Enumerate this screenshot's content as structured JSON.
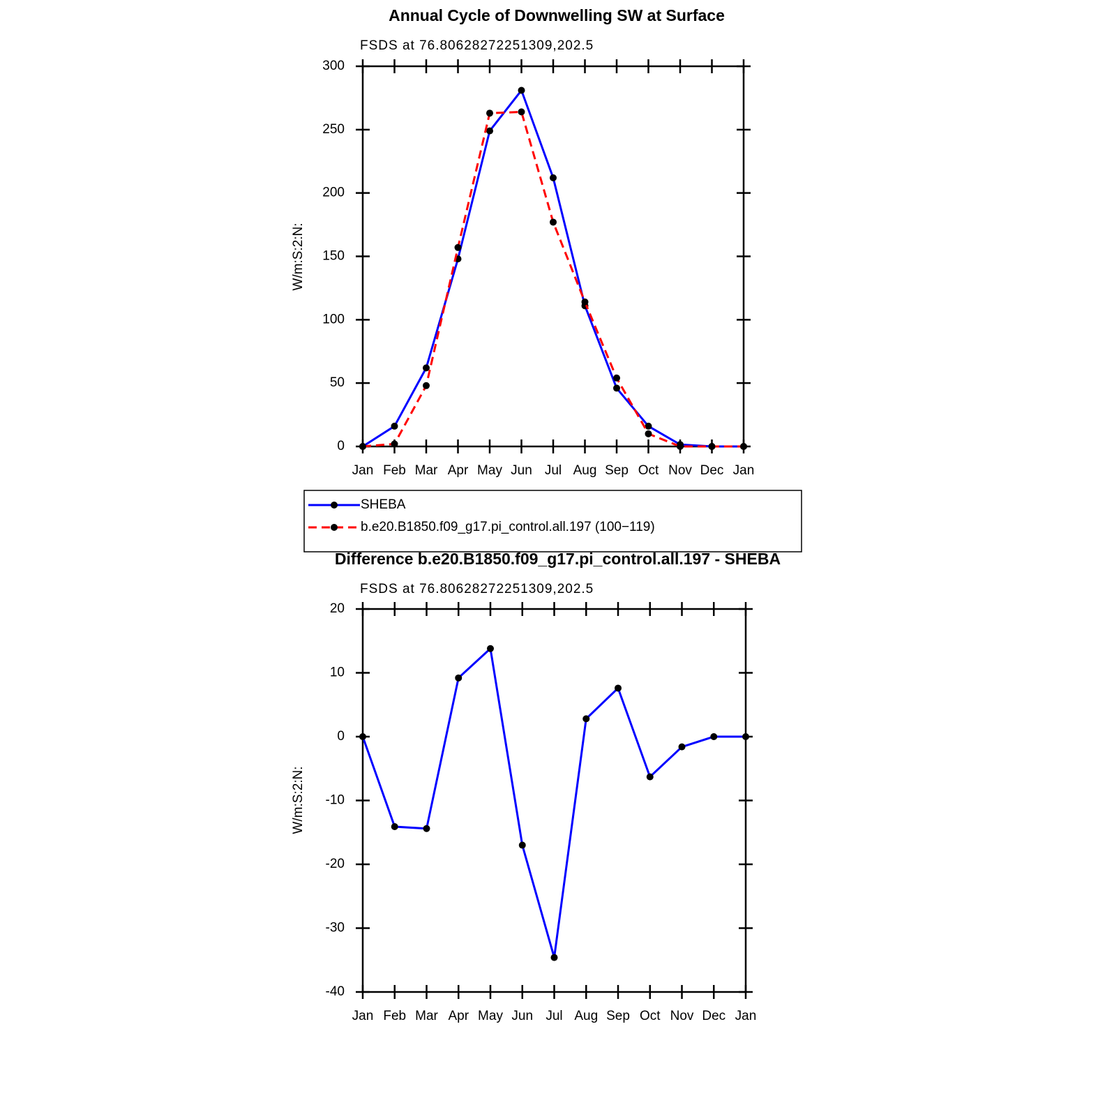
{
  "chart_data": [
    {
      "type": "line",
      "title": "Annual Cycle of Downwelling SW at Surface",
      "subtitle": "FSDS at 76.80628272251309,202.5",
      "ylabel": "W/m:S:2:N:",
      "categories": [
        "Jan",
        "Feb",
        "Mar",
        "Apr",
        "May",
        "Jun",
        "Jul",
        "Aug",
        "Sep",
        "Oct",
        "Nov",
        "Dec",
        "Jan"
      ],
      "series": [
        {
          "name": "SHEBA",
          "color": "#0000ff",
          "dash": false,
          "values": [
            0,
            16,
            62,
            148,
            249,
            281,
            212,
            111,
            46,
            16,
            1.5,
            0,
            0
          ]
        },
        {
          "name": "b.e20.B1850.f09_g17.pi_control.all.197 (100−119)",
          "color": "#ff0000",
          "dash": true,
          "values": [
            0,
            2,
            48,
            157,
            263,
            264,
            177,
            114,
            54,
            10,
            0,
            0,
            0
          ]
        }
      ],
      "ylim": [
        0,
        300
      ],
      "yticks": [
        0,
        50,
        100,
        150,
        200,
        250,
        300
      ],
      "legend": true
    },
    {
      "type": "line",
      "title": "Difference b.e20.B1850.f09_g17.pi_control.all.197 - SHEBA",
      "subtitle": "FSDS at 76.80628272251309,202.5",
      "ylabel": "W/m:S:2:N:",
      "categories": [
        "Jan",
        "Feb",
        "Mar",
        "Apr",
        "May",
        "Jun",
        "Jul",
        "Aug",
        "Sep",
        "Oct",
        "Nov",
        "Dec",
        "Jan"
      ],
      "series": [
        {
          "color": "#0000ff",
          "dash": false,
          "values": [
            0,
            -14.1,
            -14.4,
            9.2,
            13.8,
            -17,
            -34.6,
            2.8,
            7.6,
            -6.3,
            -1.6,
            0,
            0
          ]
        }
      ],
      "ylim": [
        -40,
        20
      ],
      "yticks": [
        -40,
        -30,
        -20,
        -10,
        0,
        10,
        20
      ],
      "legend": false
    }
  ]
}
